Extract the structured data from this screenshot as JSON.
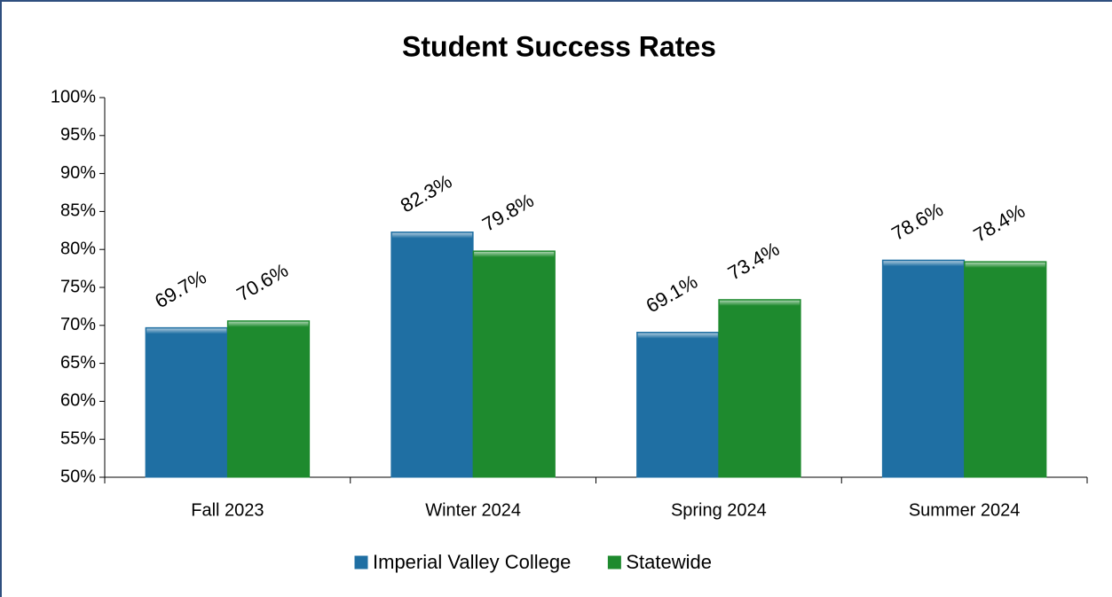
{
  "chart_data": {
    "type": "bar",
    "title": "Student Success Rates",
    "categories": [
      "Fall 2023",
      "Winter 2024",
      "Spring 2024",
      "Summer 2024"
    ],
    "series": [
      {
        "name": "Imperial Valley College",
        "color": "#1f6fa3",
        "values": [
          69.7,
          82.3,
          69.1,
          78.6
        ],
        "value_labels": [
          "69.7%",
          "82.3%",
          "69.1%",
          "78.6%"
        ]
      },
      {
        "name": "Statewide",
        "color": "#1e8a2e",
        "values": [
          70.6,
          79.8,
          73.4,
          78.4
        ],
        "value_labels": [
          "70.6%",
          "79.8%",
          "73.4%",
          "78.4%"
        ]
      }
    ],
    "ylim": [
      50,
      100
    ],
    "yticks": [
      {
        "value": 50,
        "label": "50%"
      },
      {
        "value": 55,
        "label": "55%"
      },
      {
        "value": 60,
        "label": "60%"
      },
      {
        "value": 65,
        "label": "65%"
      },
      {
        "value": 70,
        "label": "70%"
      },
      {
        "value": 75,
        "label": "75%"
      },
      {
        "value": 80,
        "label": "80%"
      },
      {
        "value": 85,
        "label": "85%"
      },
      {
        "value": 90,
        "label": "90%"
      },
      {
        "value": 95,
        "label": "95%"
      },
      {
        "value": 100,
        "label": "100%"
      }
    ],
    "legend": "bottom"
  }
}
